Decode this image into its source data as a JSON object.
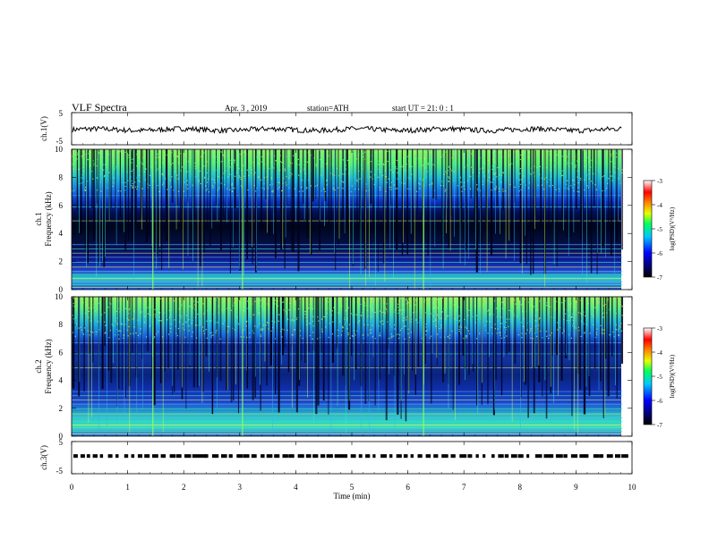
{
  "header": {
    "title": "VLF  Spectra",
    "date": "Apr. 3  , 2019",
    "station": "station=ATH",
    "start_ut": "start  UT  =    21: 0   : 1"
  },
  "chart_data": {
    "type": "spectrogram",
    "x_axis": {
      "label": "Time  (min)",
      "range": [
        0,
        10
      ],
      "ticks": [
        0,
        1,
        2,
        3,
        4,
        5,
        6,
        7,
        8,
        9,
        10
      ],
      "data_end": 9.83
    },
    "waveform_panels": [
      {
        "id": "ch1",
        "ylabel": "ch.1(V)",
        "yrange": [
          -5,
          5
        ],
        "tick_labels": [
          "5",
          "-5"
        ],
        "baseline": 0.0,
        "amplitude": 0.8
      },
      {
        "id": "ch3",
        "ylabel": "ch.3(V)",
        "yrange": [
          -5,
          5
        ],
        "tick_labels": [
          "5",
          "-5"
        ],
        "level": 0.5,
        "pattern": "square-pulse"
      }
    ],
    "spectrogram_panels": [
      {
        "id": "ch1",
        "channel_label": "ch.1",
        "ylabel": "Frequency  (kHz)",
        "yrange": [
          0,
          10
        ],
        "yticks": [
          0,
          2,
          4,
          6,
          8,
          10
        ],
        "colorbar": {
          "label": "log(PSD)(V²/Hz)",
          "range": [
            -7,
            -3
          ],
          "ticks": [
            -3,
            -4,
            -5,
            -6,
            -7
          ]
        }
      },
      {
        "id": "ch2",
        "channel_label": "ch.2",
        "ylabel": "Frequency  (kHz)",
        "yrange": [
          0,
          10
        ],
        "yticks": [
          0,
          2,
          4,
          6,
          8,
          10
        ],
        "colorbar": {
          "label": "log(PSD)(V²/Hz)",
          "range": [
            -7,
            -3
          ],
          "ticks": [
            -3,
            -4,
            -5,
            -6,
            -7
          ]
        }
      }
    ],
    "features": {
      "note": "broadband sferic spikes (vertical streaks) across the full record; high noise above 7 kHz; dark band near 3.5-5.5 kHz; narrowband lines below 3 kHz"
    }
  }
}
